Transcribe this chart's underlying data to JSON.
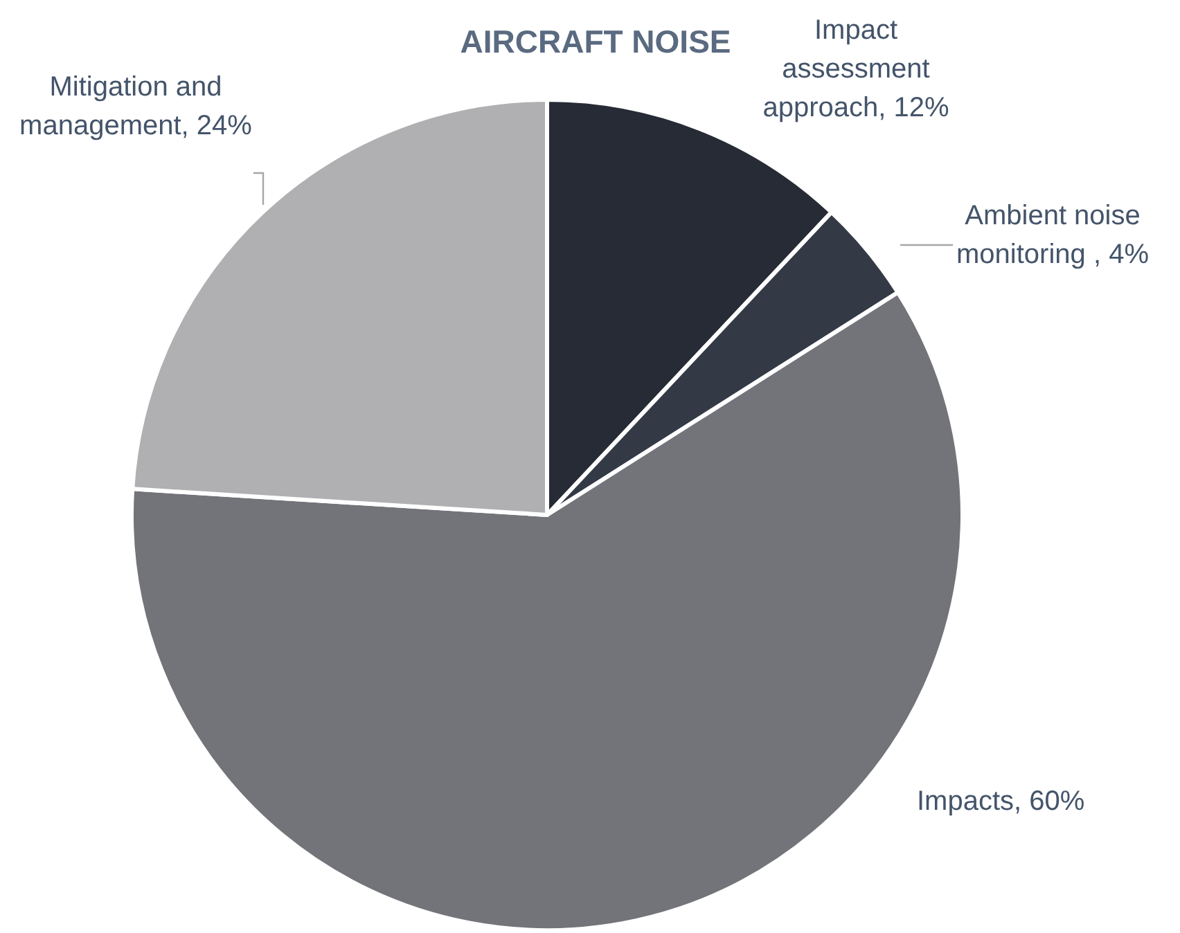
{
  "chart_data": {
    "type": "pie",
    "title": "AIRCRAFT NOISE",
    "categories": [
      "Impact assessment approach",
      "Ambient noise monitoring ",
      "Impacts",
      "Mitigation and management"
    ],
    "values": [
      12,
      4,
      60,
      24
    ],
    "value_labels": [
      "12%",
      "4%",
      "60%",
      "24%"
    ],
    "colors": [
      "#262b35",
      "#333a46",
      "#727479",
      "#b0b0b2"
    ]
  }
}
